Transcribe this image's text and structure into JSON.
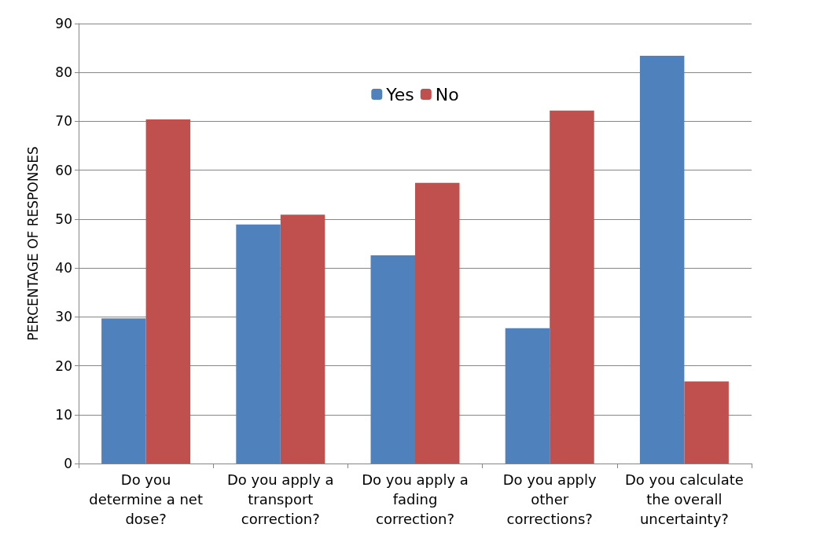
{
  "chart_data": {
    "type": "bar",
    "ylabel": "PERCENTAGE OF RESPONSES",
    "categories": [
      "Do you\ndetermine a net\ndose?",
      "Do you apply a\ntransport\ncorrection?",
      "Do you apply a\nfading\ncorrection?",
      "Do you apply\nother\ncorrections?",
      "Do you calculate\nthe overall\nuncertainty?"
    ],
    "series": [
      {
        "name": "Yes",
        "color": "#4f81bd",
        "values": [
          29.7,
          48.9,
          42.6,
          27.7,
          83.4
        ]
      },
      {
        "name": "No",
        "color": "#c0504d",
        "values": [
          70.4,
          50.9,
          57.4,
          72.2,
          16.8
        ]
      }
    ],
    "ylim": [
      0,
      90
    ],
    "yticks": [
      0,
      10,
      20,
      30,
      40,
      50,
      60,
      70,
      80,
      90
    ],
    "grid": "y",
    "legend": "top"
  }
}
